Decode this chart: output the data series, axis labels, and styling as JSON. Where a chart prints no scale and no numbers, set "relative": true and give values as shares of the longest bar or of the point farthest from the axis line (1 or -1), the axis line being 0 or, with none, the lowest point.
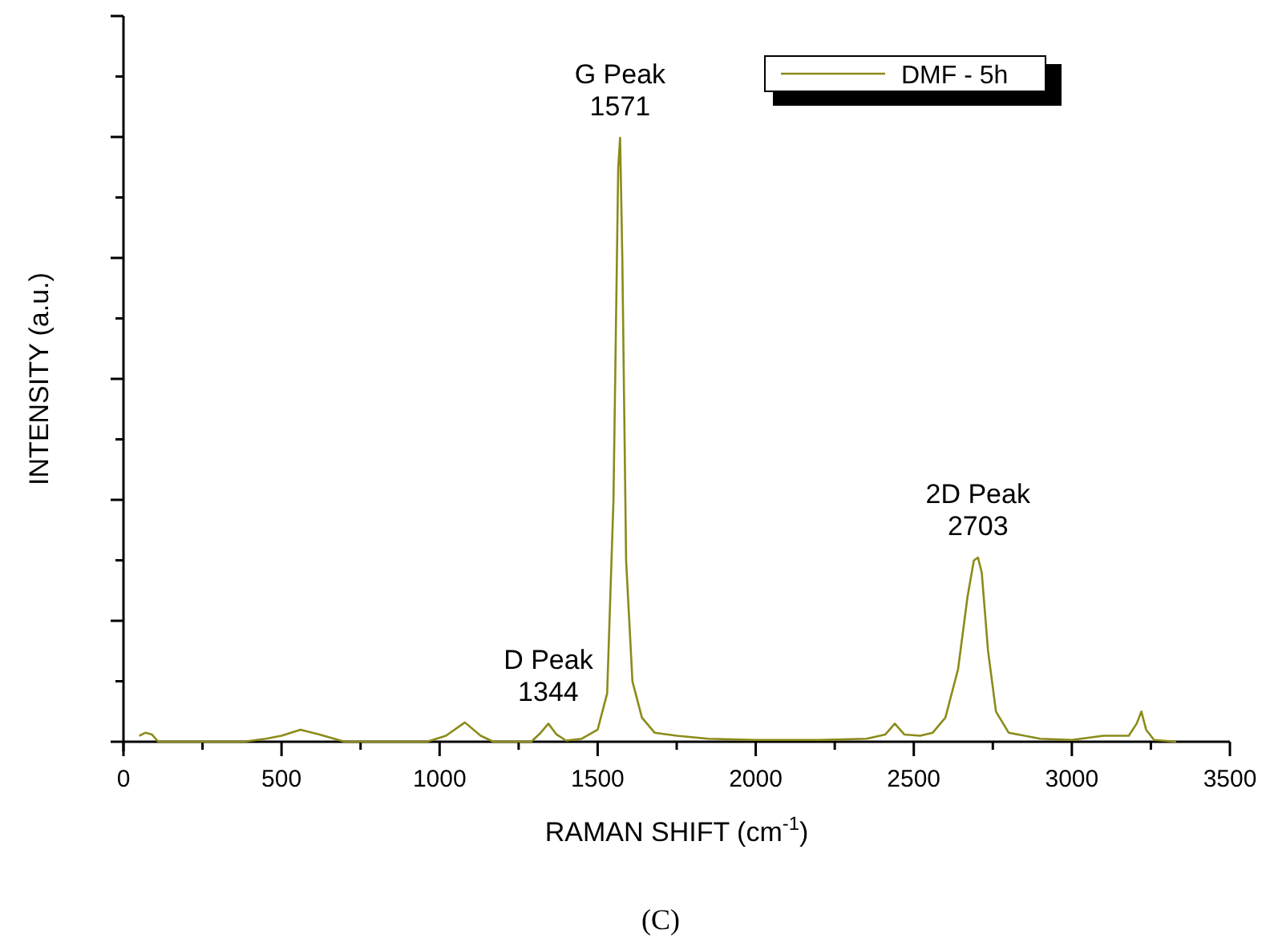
{
  "chart_data": {
    "type": "line",
    "title": "(C)",
    "xlabel": "RAMAN SHIFT (cm$^{-1}$)",
    "ylabel": "INTENSITY (a.u.)",
    "relative": true,
    "legend": "top right",
    "grid": false,
    "marker": "none",
    "line_style": "solid",
    "xlim": [
      0,
      3500
    ],
    "xticks": [
      0,
      {
        "value": 250,
        "label": null
      },
      500,
      {
        "value": 750,
        "label": null
      },
      1000,
      {
        "value": 1250,
        "label": null
      },
      1500,
      {
        "value": 1750,
        "label": null
      },
      2000,
      {
        "value": 2250,
        "label": null
      },
      2500,
      {
        "value": 2750,
        "label": null
      },
      3000,
      {
        "value": 3250,
        "label": null
      },
      3500
    ],
    "annotations": [
      {
        "text": "D Peak\n1344",
        "x": 1344,
        "y": 0.03
      },
      {
        "text": "G Peak\n1571",
        "x": 1571,
        "y": 1
      },
      {
        "text": "2D Peak\n2703",
        "x": 2703,
        "y": 0.305
      }
    ],
    "series": [
      {
        "name": "DMF - 5h",
        "color": "#8b8b1a",
        "x": [
          50,
          70,
          90,
          110,
          200,
          380,
          450,
          500,
          560,
          620,
          700,
          800,
          960,
          1020,
          1080,
          1130,
          1170,
          1250,
          1290,
          1320,
          1344,
          1370,
          1400,
          1450,
          1500,
          1530,
          1550,
          1565,
          1571,
          1578,
          1590,
          1610,
          1640,
          1680,
          1750,
          1850,
          2000,
          2200,
          2350,
          2410,
          2440,
          2470,
          2520,
          2560,
          2600,
          2640,
          2670,
          2690,
          2703,
          2715,
          2735,
          2760,
          2800,
          2900,
          3000,
          3100,
          3180,
          3205,
          3220,
          3235,
          3260,
          3330
        ],
        "values": [
          0.01,
          0.015,
          0.012,
          0,
          0,
          0,
          0.005,
          0.01,
          0.02,
          0.012,
          0,
          0,
          0,
          0.01,
          0.032,
          0.01,
          0,
          0,
          0,
          0.015,
          0.03,
          0.012,
          0.002,
          0.005,
          0.02,
          0.08,
          0.4,
          0.95,
          1,
          0.8,
          0.3,
          0.1,
          0.04,
          0.015,
          0.01,
          0.005,
          0.003,
          0.003,
          0.005,
          0.012,
          0.03,
          0.012,
          0.01,
          0.015,
          0.04,
          0.12,
          0.24,
          0.3,
          0.305,
          0.28,
          0.15,
          0.05,
          0.015,
          0.005,
          0.003,
          0.01,
          0.01,
          0.03,
          0.05,
          0.02,
          0.003,
          0
        ]
      }
    ]
  }
}
